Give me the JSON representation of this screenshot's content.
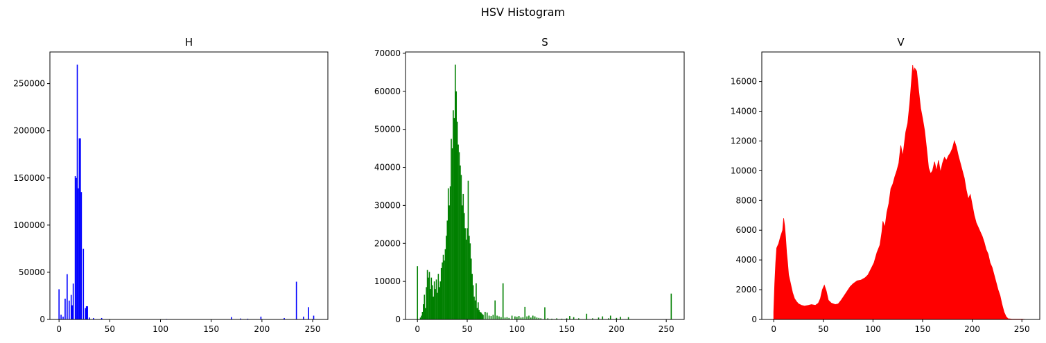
{
  "figure": {
    "suptitle": "HSV Histogram"
  },
  "chart_data": [
    {
      "type": "bar",
      "title": "H",
      "xlabel": "",
      "ylabel": "",
      "color": "#0000ff",
      "xlim": [
        -9,
        265
      ],
      "ylim": [
        0,
        283500
      ],
      "xticks": [
        0,
        50,
        100,
        150,
        200,
        250
      ],
      "yticks": [
        0,
        50000,
        100000,
        150000,
        200000,
        250000
      ],
      "bins": [
        {
          "x": 0,
          "y": 32000
        },
        {
          "x": 2,
          "y": 5000
        },
        {
          "x": 4,
          "y": 3000
        },
        {
          "x": 6,
          "y": 22000
        },
        {
          "x": 8,
          "y": 48000
        },
        {
          "x": 10,
          "y": 20000
        },
        {
          "x": 12,
          "y": 26000
        },
        {
          "x": 13,
          "y": 15000
        },
        {
          "x": 14,
          "y": 38000
        },
        {
          "x": 16,
          "y": 152000
        },
        {
          "x": 17,
          "y": 150000
        },
        {
          "x": 18,
          "y": 270000
        },
        {
          "x": 19,
          "y": 139000
        },
        {
          "x": 20,
          "y": 192000
        },
        {
          "x": 21,
          "y": 192000
        },
        {
          "x": 22,
          "y": 135000
        },
        {
          "x": 24,
          "y": 75000
        },
        {
          "x": 26,
          "y": 12000
        },
        {
          "x": 27,
          "y": 14000
        },
        {
          "x": 28,
          "y": 14000
        },
        {
          "x": 30,
          "y": 2000
        },
        {
          "x": 34,
          "y": 1500
        },
        {
          "x": 42,
          "y": 1500
        },
        {
          "x": 106,
          "y": 500
        },
        {
          "x": 170,
          "y": 2500
        },
        {
          "x": 179,
          "y": 1000
        },
        {
          "x": 186,
          "y": 800
        },
        {
          "x": 199,
          "y": 3000
        },
        {
          "x": 222,
          "y": 1500
        },
        {
          "x": 234,
          "y": 40000
        },
        {
          "x": 241,
          "y": 3000
        },
        {
          "x": 246,
          "y": 13000
        },
        {
          "x": 251,
          "y": 4000
        }
      ]
    },
    {
      "type": "bar",
      "title": "S",
      "xlabel": "",
      "ylabel": "",
      "color": "#008000",
      "xlim": [
        -12,
        268
      ],
      "ylim": [
        0,
        70350
      ],
      "xticks": [
        0,
        50,
        100,
        150,
        200,
        250
      ],
      "yticks": [
        0,
        10000,
        20000,
        30000,
        40000,
        50000,
        60000,
        70000
      ],
      "bins": [
        {
          "x": 0,
          "y": 14000
        },
        {
          "x": 3,
          "y": 500
        },
        {
          "x": 4,
          "y": 1000
        },
        {
          "x": 5,
          "y": 2000
        },
        {
          "x": 6,
          "y": 4000
        },
        {
          "x": 7,
          "y": 6500
        },
        {
          "x": 8,
          "y": 3000
        },
        {
          "x": 9,
          "y": 8500
        },
        {
          "x": 10,
          "y": 13000
        },
        {
          "x": 11,
          "y": 11000
        },
        {
          "x": 12,
          "y": 12500
        },
        {
          "x": 13,
          "y": 8000
        },
        {
          "x": 14,
          "y": 11000
        },
        {
          "x": 15,
          "y": 9000
        },
        {
          "x": 16,
          "y": 6000
        },
        {
          "x": 17,
          "y": 10000
        },
        {
          "x": 18,
          "y": 8000
        },
        {
          "x": 19,
          "y": 10500
        },
        {
          "x": 20,
          "y": 7000
        },
        {
          "x": 21,
          "y": 12000
        },
        {
          "x": 22,
          "y": 8500
        },
        {
          "x": 23,
          "y": 10000
        },
        {
          "x": 24,
          "y": 13500
        },
        {
          "x": 25,
          "y": 15000
        },
        {
          "x": 26,
          "y": 17000
        },
        {
          "x": 27,
          "y": 15500
        },
        {
          "x": 28,
          "y": 18500
        },
        {
          "x": 29,
          "y": 22000
        },
        {
          "x": 30,
          "y": 26000
        },
        {
          "x": 31,
          "y": 34500
        },
        {
          "x": 32,
          "y": 30000
        },
        {
          "x": 33,
          "y": 35000
        },
        {
          "x": 34,
          "y": 47500
        },
        {
          "x": 35,
          "y": 45000
        },
        {
          "x": 36,
          "y": 55000
        },
        {
          "x": 37,
          "y": 53000
        },
        {
          "x": 38,
          "y": 67000
        },
        {
          "x": 39,
          "y": 60000
        },
        {
          "x": 40,
          "y": 52000
        },
        {
          "x": 41,
          "y": 46000
        },
        {
          "x": 42,
          "y": 44000
        },
        {
          "x": 43,
          "y": 40500
        },
        {
          "x": 44,
          "y": 38000
        },
        {
          "x": 45,
          "y": 30000
        },
        {
          "x": 46,
          "y": 33000
        },
        {
          "x": 47,
          "y": 28000
        },
        {
          "x": 48,
          "y": 24000
        },
        {
          "x": 49,
          "y": 21000
        },
        {
          "x": 50,
          "y": 24000
        },
        {
          "x": 51,
          "y": 36500
        },
        {
          "x": 52,
          "y": 22000
        },
        {
          "x": 53,
          "y": 20000
        },
        {
          "x": 54,
          "y": 16000
        },
        {
          "x": 55,
          "y": 12000
        },
        {
          "x": 56,
          "y": 9000
        },
        {
          "x": 57,
          "y": 6000
        },
        {
          "x": 58,
          "y": 5000
        },
        {
          "x": 59,
          "y": 9500
        },
        {
          "x": 60,
          "y": 3000
        },
        {
          "x": 61,
          "y": 4500
        },
        {
          "x": 62,
          "y": 2500
        },
        {
          "x": 63,
          "y": 2000
        },
        {
          "x": 64,
          "y": 1800
        },
        {
          "x": 65,
          "y": 1500
        },
        {
          "x": 66,
          "y": 1200
        },
        {
          "x": 68,
          "y": 2000
        },
        {
          "x": 70,
          "y": 1800
        },
        {
          "x": 72,
          "y": 1000
        },
        {
          "x": 74,
          "y": 900
        },
        {
          "x": 76,
          "y": 1200
        },
        {
          "x": 78,
          "y": 5000
        },
        {
          "x": 80,
          "y": 1000
        },
        {
          "x": 82,
          "y": 800
        },
        {
          "x": 84,
          "y": 600
        },
        {
          "x": 86,
          "y": 9500
        },
        {
          "x": 88,
          "y": 500
        },
        {
          "x": 90,
          "y": 600
        },
        {
          "x": 92,
          "y": 400
        },
        {
          "x": 95,
          "y": 1000
        },
        {
          "x": 98,
          "y": 800
        },
        {
          "x": 100,
          "y": 700
        },
        {
          "x": 102,
          "y": 900
        },
        {
          "x": 104,
          "y": 500
        },
        {
          "x": 106,
          "y": 600
        },
        {
          "x": 108,
          "y": 3300
        },
        {
          "x": 110,
          "y": 800
        },
        {
          "x": 112,
          "y": 1000
        },
        {
          "x": 114,
          "y": 500
        },
        {
          "x": 116,
          "y": 1000
        },
        {
          "x": 118,
          "y": 800
        },
        {
          "x": 120,
          "y": 500
        },
        {
          "x": 122,
          "y": 400
        },
        {
          "x": 124,
          "y": 300
        },
        {
          "x": 128,
          "y": 3200
        },
        {
          "x": 131,
          "y": 300
        },
        {
          "x": 135,
          "y": 200
        },
        {
          "x": 140,
          "y": 300
        },
        {
          "x": 145,
          "y": 200
        },
        {
          "x": 150,
          "y": 300
        },
        {
          "x": 153,
          "y": 900
        },
        {
          "x": 157,
          "y": 600
        },
        {
          "x": 162,
          "y": 300
        },
        {
          "x": 170,
          "y": 1500
        },
        {
          "x": 176,
          "y": 300
        },
        {
          "x": 182,
          "y": 500
        },
        {
          "x": 186,
          "y": 800
        },
        {
          "x": 192,
          "y": 300
        },
        {
          "x": 194,
          "y": 1000
        },
        {
          "x": 200,
          "y": 400
        },
        {
          "x": 204,
          "y": 700
        },
        {
          "x": 212,
          "y": 600
        },
        {
          "x": 255,
          "y": 6800
        }
      ]
    },
    {
      "type": "bar",
      "title": "V",
      "xlabel": "",
      "ylabel": "",
      "color": "#ff0000",
      "xlim": [
        -12,
        268
      ],
      "ylim": [
        0,
        17985
      ],
      "xticks": [
        0,
        50,
        100,
        150,
        200,
        250
      ],
      "yticks": [
        0,
        2000,
        4000,
        6000,
        8000,
        10000,
        12000,
        14000,
        16000
      ],
      "series_points": [
        [
          0,
          500
        ],
        [
          1,
          2400
        ],
        [
          2,
          3800
        ],
        [
          3,
          4800
        ],
        [
          5,
          5100
        ],
        [
          7,
          5600
        ],
        [
          9,
          6000
        ],
        [
          10,
          6800
        ],
        [
          11,
          6300
        ],
        [
          12,
          5500
        ],
        [
          13,
          4500
        ],
        [
          14,
          3800
        ],
        [
          15,
          3000
        ],
        [
          17,
          2400
        ],
        [
          19,
          1800
        ],
        [
          21,
          1400
        ],
        [
          23,
          1200
        ],
        [
          25,
          1050
        ],
        [
          28,
          950
        ],
        [
          31,
          900
        ],
        [
          35,
          950
        ],
        [
          38,
          1000
        ],
        [
          42,
          950
        ],
        [
          45,
          1100
        ],
        [
          47,
          1400
        ],
        [
          49,
          2000
        ],
        [
          51,
          2300
        ],
        [
          53,
          1900
        ],
        [
          55,
          1300
        ],
        [
          58,
          1100
        ],
        [
          62,
          1000
        ],
        [
          65,
          1050
        ],
        [
          68,
          1300
        ],
        [
          71,
          1600
        ],
        [
          74,
          1900
        ],
        [
          77,
          2200
        ],
        [
          80,
          2400
        ],
        [
          84,
          2600
        ],
        [
          88,
          2650
        ],
        [
          92,
          2800
        ],
        [
          95,
          3000
        ],
        [
          98,
          3400
        ],
        [
          101,
          3800
        ],
        [
          104,
          4500
        ],
        [
          107,
          5000
        ],
        [
          109,
          5900
        ],
        [
          110,
          6600
        ],
        [
          112,
          6200
        ],
        [
          114,
          7200
        ],
        [
          116,
          7800
        ],
        [
          118,
          8800
        ],
        [
          120,
          9100
        ],
        [
          122,
          9600
        ],
        [
          124,
          10000
        ],
        [
          126,
          10500
        ],
        [
          128,
          11700
        ],
        [
          130,
          11000
        ],
        [
          131,
          11500
        ],
        [
          133,
          12600
        ],
        [
          135,
          13200
        ],
        [
          137,
          14500
        ],
        [
          139,
          16200
        ],
        [
          140,
          17100
        ],
        [
          141,
          16600
        ],
        [
          142,
          16900
        ],
        [
          144,
          16700
        ],
        [
          146,
          15400
        ],
        [
          148,
          14200
        ],
        [
          150,
          13500
        ],
        [
          152,
          12700
        ],
        [
          154,
          11500
        ],
        [
          156,
          10200
        ],
        [
          158,
          9800
        ],
        [
          160,
          10000
        ],
        [
          162,
          10600
        ],
        [
          164,
          10000
        ],
        [
          166,
          10700
        ],
        [
          168,
          9900
        ],
        [
          170,
          10500
        ],
        [
          172,
          10900
        ],
        [
          174,
          10700
        ],
        [
          176,
          11000
        ],
        [
          178,
          11200
        ],
        [
          180,
          11500
        ],
        [
          182,
          12000
        ],
        [
          184,
          11600
        ],
        [
          186,
          11000
        ],
        [
          188,
          10500
        ],
        [
          190,
          10000
        ],
        [
          192,
          9500
        ],
        [
          194,
          8700
        ],
        [
          196,
          8100
        ],
        [
          198,
          8400
        ],
        [
          200,
          7700
        ],
        [
          202,
          7000
        ],
        [
          204,
          6500
        ],
        [
          206,
          6200
        ],
        [
          208,
          5900
        ],
        [
          210,
          5600
        ],
        [
          212,
          5200
        ],
        [
          214,
          4700
        ],
        [
          216,
          4400
        ],
        [
          218,
          3800
        ],
        [
          220,
          3500
        ],
        [
          222,
          3000
        ],
        [
          224,
          2500
        ],
        [
          226,
          2000
        ],
        [
          228,
          1600
        ],
        [
          230,
          1000
        ],
        [
          232,
          500
        ],
        [
          234,
          200
        ],
        [
          236,
          50
        ],
        [
          240,
          20
        ],
        [
          250,
          20
        ],
        [
          255,
          0
        ]
      ]
    }
  ]
}
